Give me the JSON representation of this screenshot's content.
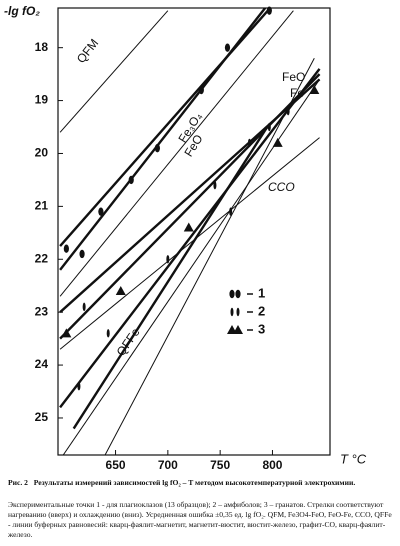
{
  "chart_data": {
    "type": "line",
    "y_label": "-lg fO₂",
    "x_label": "T °C",
    "xlim": [
      595,
      855
    ],
    "xticks": [
      650,
      700,
      750,
      800
    ],
    "ylim": [
      17.25,
      25.7
    ],
    "yticks": [
      18,
      19,
      20,
      21,
      22,
      23,
      24,
      25
    ],
    "y_inverted": true,
    "buffers": [
      {
        "labels": [
          "QFM"
        ],
        "x": [
          597,
          700
        ],
        "y": [
          19.6,
          17.3
        ]
      },
      {
        "labels": [
          "Fe₃O₄",
          "FeO"
        ],
        "x": [
          597,
          820
        ],
        "y": [
          22.7,
          17.3
        ]
      },
      {
        "labels": [
          "FeO",
          "Fe"
        ],
        "x": [
          640,
          840
        ],
        "y": [
          25.7,
          18.2
        ]
      },
      {
        "labels": [
          "CCO"
        ],
        "x": [
          597,
          845
        ],
        "y": [
          23.7,
          19.7
        ]
      },
      {
        "labels": [
          "QFFe"
        ],
        "x": [
          600,
          845
        ],
        "y": [
          25.7,
          18.6
        ]
      }
    ],
    "fits": [
      {
        "x": [
          597,
          800
        ],
        "y": [
          21.75,
          17.2
        ]
      },
      {
        "x": [
          597,
          795
        ],
        "y": [
          22.2,
          17.2
        ]
      },
      {
        "x": [
          597,
          845
        ],
        "y": [
          23.0,
          18.6
        ]
      },
      {
        "x": [
          597,
          845
        ],
        "y": [
          23.5,
          18.5
        ]
      },
      {
        "x": [
          597,
          845
        ],
        "y": [
          24.8,
          18.4
        ]
      },
      {
        "x": [
          610,
          795
        ],
        "y": [
          25.2,
          19.5
        ]
      }
    ],
    "series": [
      {
        "name": "1",
        "marker": "spindle",
        "x": [
          603,
          618,
          636,
          665,
          690,
          732,
          757,
          797
        ],
        "y": [
          21.8,
          21.9,
          21.1,
          20.5,
          19.9,
          18.8,
          18.0,
          17.3
        ]
      },
      {
        "name": "2",
        "marker": "thin",
        "x": [
          615,
          620,
          643,
          700,
          745,
          760,
          778,
          797,
          815
        ],
        "y": [
          24.4,
          22.9,
          23.4,
          22.0,
          20.6,
          21.1,
          19.8,
          19.5,
          19.2
        ]
      },
      {
        "name": "3",
        "marker": "triangle",
        "x": [
          603,
          655,
          720,
          805,
          840
        ],
        "y": [
          23.4,
          22.6,
          21.4,
          19.8,
          18.8
        ]
      }
    ]
  },
  "caption": {
    "figure": "Рис. 2",
    "title": "Результаты измерений зависимостей lg fO₂ – T методом высокотемпературной электрохимии.",
    "text": "Экспериментальные точки 1 - для плагиоклазов (13 образцов); 2 – амфиболов; 3 – гранатов. Стрелки соответствуют нагреванию (вверх) и охлаждению (вниз). Усредненная ошибка ±0,35 ед. lg fO₂. QFM, Fe3O4-FeO, FeO-Fe, CCO, QFFe - линии буферных равновесий: кварц-фаялит-магнетит, магнетит-вюстит, вюстит-железо, графит-CO, кварц-фаялит-железо."
  }
}
